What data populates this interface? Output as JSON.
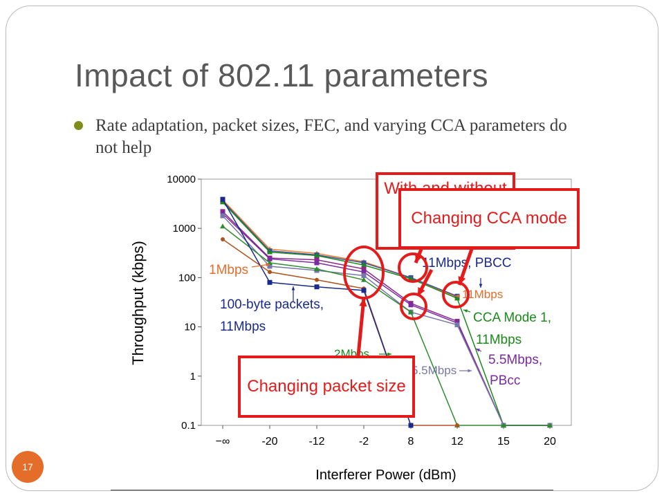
{
  "slide": {
    "title": "Impact of 802.11 parameters",
    "bullet": "Rate adaptation, packet sizes, FEC, and varying CCA parameters do not help",
    "page_number": "17"
  },
  "chart_data": {
    "type": "line",
    "xlabel": "Interferer Power (dBm)",
    "ylabel": "Throughput (kbps)",
    "x_categories": [
      "−∞",
      "-20",
      "-12",
      "-2",
      "8",
      "12",
      "15",
      "20"
    ],
    "y_scale": "log",
    "y_ticks": [
      "10000",
      "1000",
      "100",
      "10",
      "1",
      "0.1"
    ],
    "ylim": [
      0.1,
      10000
    ],
    "grid": false,
    "series": [
      {
        "name": "11Mbps",
        "color": "#f07f2a",
        "marker": "triangle",
        "values": [
          3800,
          380,
          310,
          210,
          100,
          40,
          null,
          null
        ]
      },
      {
        "name": "11Mbps, PBCC",
        "color": "#3b4f9a",
        "marker": "square",
        "values": [
          3600,
          350,
          290,
          200,
          100,
          42,
          null,
          null
        ]
      },
      {
        "name": "CCA Mode 1, 11Mbps",
        "color": "#1a8a1a",
        "marker": "triangle",
        "values": [
          3400,
          330,
          280,
          180,
          95,
          38,
          0.1,
          0.1
        ]
      },
      {
        "color": "#8a2a8a",
        "marker": "square",
        "values": [
          2200,
          250,
          230,
          150,
          30,
          13,
          0.1,
          0.1
        ]
      },
      {
        "name": "5.5Mbps, PBCC",
        "color": "#7b2aa0",
        "marker": "square",
        "values": [
          2000,
          240,
          200,
          130,
          28,
          12,
          0.1,
          0.1
        ]
      },
      {
        "name": "5.5Mbps",
        "color": "#7777aa",
        "marker": "square",
        "values": [
          1800,
          170,
          140,
          110,
          20,
          11,
          0.1,
          0.1
        ]
      },
      {
        "name": "2Mbps",
        "color": "#2e8b2e",
        "marker": "triangle",
        "values": [
          1100,
          200,
          150,
          90,
          20,
          0.1,
          0.1,
          0.1
        ]
      },
      {
        "name": "1Mbps",
        "color": "#b0521b",
        "marker": "circle",
        "values": [
          600,
          130,
          90,
          60,
          0.1,
          0.1,
          null,
          null
        ]
      },
      {
        "name": "100-byte packets, 11Mbps",
        "color": "#1a2a8a",
        "marker": "square",
        "values": [
          3900,
          80,
          65,
          55,
          0.1,
          null,
          null,
          null
        ]
      }
    ],
    "annotations": [
      "1Mbps",
      "100-byte packets,",
      "11Mbps",
      "11Mbps, PBCC",
      "11Mbps",
      "CCA Mode 1,",
      "11Mbps",
      "2Mbps",
      "5.5Mbps",
      "5.5Mbps,",
      "PBcc"
    ]
  },
  "callouts": {
    "packet_size": "Changing packet size",
    "with_without": "With and without FEC",
    "cca_mode": "Changing CCA mode"
  },
  "colors": {
    "callout_red": "#e41b1b",
    "title_gray": "#595959",
    "badge_orange": "#e46d2a",
    "bullet_olive": "#7f8d1c"
  }
}
